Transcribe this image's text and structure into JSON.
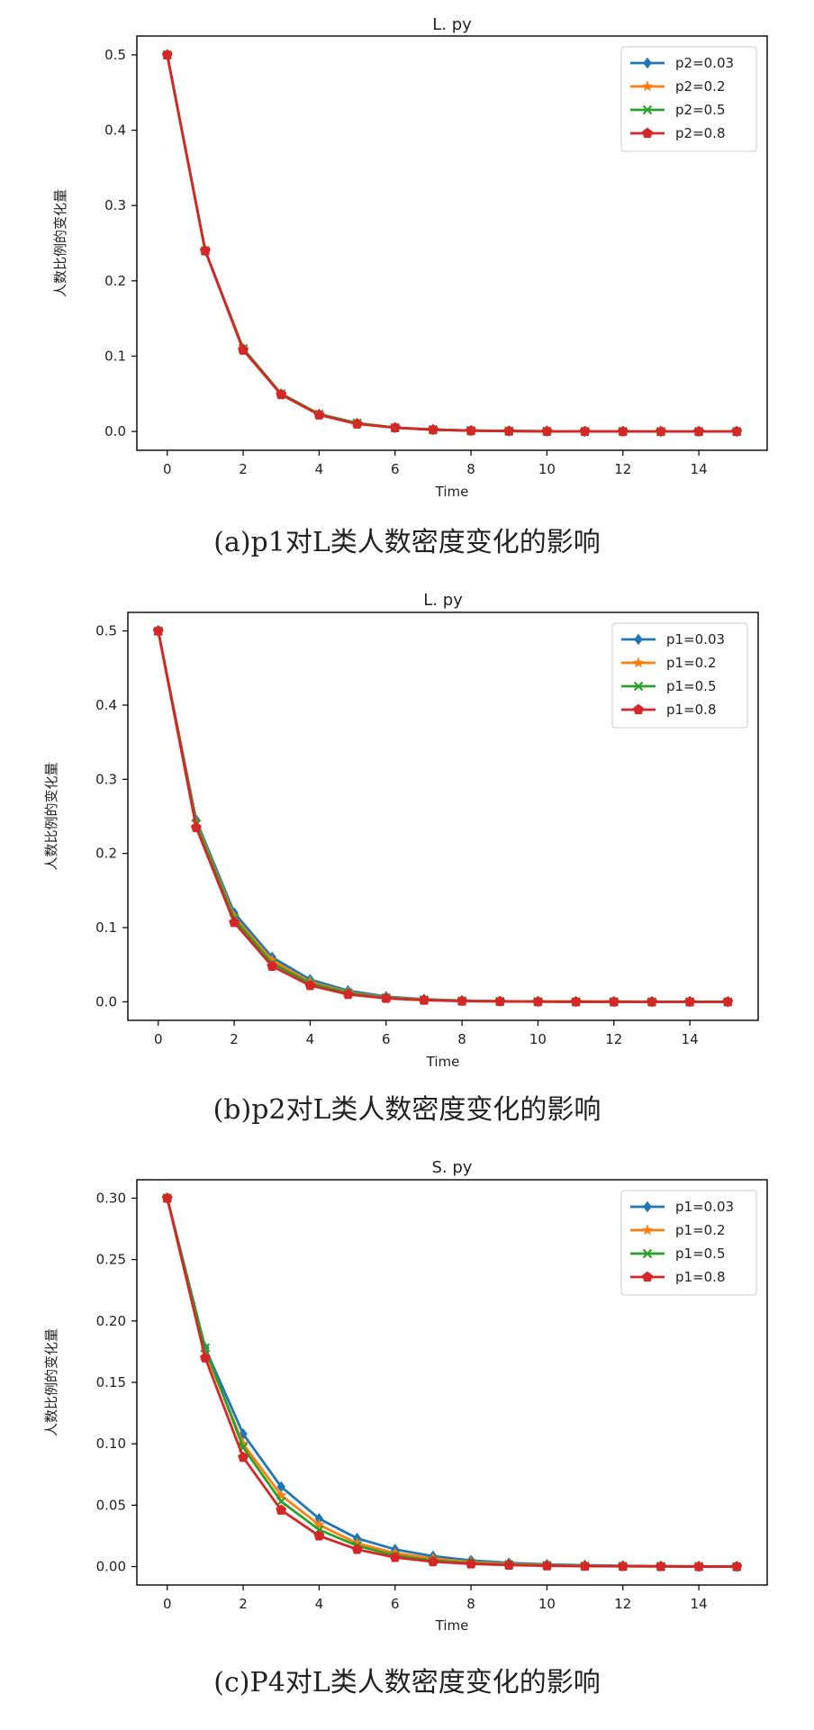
{
  "colors": {
    "blue": "#1f77b4",
    "orange": "#ff7f0e",
    "green": "#2ca02c",
    "red": "#d62728"
  },
  "chart_data": [
    {
      "type": "line",
      "title": "L. py",
      "xlabel": "Time",
      "ylabel": "人数比例的变化量",
      "caption": "(a)p1对L类人数密度变化的影响",
      "x": [
        0,
        1,
        2,
        3,
        4,
        5,
        6,
        7,
        8,
        9,
        10,
        11,
        12,
        13,
        14,
        15
      ],
      "xticks": [
        0,
        2,
        4,
        6,
        8,
        10,
        12,
        14
      ],
      "xlim": [
        -0.8,
        15.8
      ],
      "yticks": [
        0.0,
        0.1,
        0.2,
        0.3,
        0.4,
        0.5
      ],
      "ytick_labels": [
        "0.0",
        "0.1",
        "0.2",
        "0.3",
        "0.4",
        "0.5"
      ],
      "ylim": [
        -0.025,
        0.525
      ],
      "legend": "top-right",
      "series": [
        {
          "name": "p2=0.03",
          "color": "blue",
          "marker": "diamond",
          "values": [
            0.5,
            0.24,
            0.11,
            0.05,
            0.023,
            0.011,
            0.005,
            0.0024,
            0.0012,
            0.0006,
            0.0003,
            0.0001,
            0.0001,
            0.0,
            0.0,
            0.0
          ]
        },
        {
          "name": "p2=0.2",
          "color": "orange",
          "marker": "star",
          "values": [
            0.5,
            0.24,
            0.11,
            0.05,
            0.023,
            0.011,
            0.005,
            0.0024,
            0.0012,
            0.0006,
            0.0003,
            0.0001,
            0.0001,
            0.0,
            0.0,
            0.0
          ]
        },
        {
          "name": "p2=0.5",
          "color": "green",
          "marker": "x",
          "values": [
            0.5,
            0.24,
            0.11,
            0.05,
            0.023,
            0.011,
            0.005,
            0.0024,
            0.0012,
            0.0006,
            0.0003,
            0.0001,
            0.0001,
            0.0,
            0.0,
            0.0
          ]
        },
        {
          "name": "p2=0.8",
          "color": "red",
          "marker": "pentagon",
          "values": [
            0.5,
            0.24,
            0.108,
            0.049,
            0.022,
            0.01,
            0.005,
            0.0023,
            0.001,
            0.0005,
            0.0002,
            0.0001,
            0.0,
            0.0,
            0.0,
            0.0
          ]
        }
      ]
    },
    {
      "type": "line",
      "title": "L. py",
      "xlabel": "Time",
      "ylabel": "人数比例的变化量",
      "caption": "(b)p2对L类人数密度变化的影响",
      "x": [
        0,
        1,
        2,
        3,
        4,
        5,
        6,
        7,
        8,
        9,
        10,
        11,
        12,
        13,
        14,
        15
      ],
      "xticks": [
        0,
        2,
        4,
        6,
        8,
        10,
        12,
        14
      ],
      "xlim": [
        -0.8,
        15.8
      ],
      "yticks": [
        0.0,
        0.1,
        0.2,
        0.3,
        0.4,
        0.5
      ],
      "ytick_labels": [
        "0.0",
        "0.1",
        "0.2",
        "0.3",
        "0.4",
        "0.5"
      ],
      "ylim": [
        -0.025,
        0.525
      ],
      "legend": "top-right",
      "series": [
        {
          "name": "p1=0.03",
          "color": "blue",
          "marker": "diamond",
          "values": [
            0.5,
            0.245,
            0.12,
            0.06,
            0.03,
            0.015,
            0.007,
            0.0035,
            0.0017,
            0.0008,
            0.0004,
            0.0002,
            0.0001,
            0.0,
            0.0,
            0.0
          ]
        },
        {
          "name": "p1=0.2",
          "color": "orange",
          "marker": "star",
          "values": [
            0.5,
            0.242,
            0.115,
            0.056,
            0.027,
            0.013,
            0.006,
            0.003,
            0.0014,
            0.0007,
            0.0003,
            0.0002,
            0.0001,
            0.0,
            0.0,
            0.0
          ]
        },
        {
          "name": "p1=0.5",
          "color": "green",
          "marker": "x",
          "values": [
            0.5,
            0.24,
            0.112,
            0.052,
            0.025,
            0.012,
            0.0055,
            0.0026,
            0.0012,
            0.0006,
            0.0003,
            0.0001,
            0.0001,
            0.0,
            0.0,
            0.0
          ]
        },
        {
          "name": "p1=0.8",
          "color": "red",
          "marker": "pentagon",
          "values": [
            0.5,
            0.235,
            0.107,
            0.048,
            0.022,
            0.01,
            0.0047,
            0.0022,
            0.001,
            0.0005,
            0.0002,
            0.0001,
            0.0,
            0.0,
            0.0,
            0.0
          ]
        }
      ]
    },
    {
      "type": "line",
      "title": "S. py",
      "xlabel": "Time",
      "ylabel": "人数比例的变化量",
      "caption": "(c)P4对L类人数密度变化的影响",
      "x": [
        0,
        1,
        2,
        3,
        4,
        5,
        6,
        7,
        8,
        9,
        10,
        11,
        12,
        13,
        14,
        15
      ],
      "xticks": [
        0,
        2,
        4,
        6,
        8,
        10,
        12,
        14
      ],
      "xlim": [
        -0.8,
        15.8
      ],
      "yticks": [
        0.0,
        0.05,
        0.1,
        0.15,
        0.2,
        0.25,
        0.3
      ],
      "ytick_labels": [
        "0.00",
        "0.05",
        "0.10",
        "0.15",
        "0.20",
        "0.25",
        "0.30"
      ],
      "ylim": [
        -0.015,
        0.315
      ],
      "legend": "top-right",
      "series": [
        {
          "name": "p1=0.03",
          "color": "blue",
          "marker": "diamond",
          "values": [
            0.3,
            0.178,
            0.108,
            0.065,
            0.039,
            0.023,
            0.014,
            0.0085,
            0.005,
            0.003,
            0.0018,
            0.0011,
            0.0007,
            0.0004,
            0.0002,
            0.0001
          ]
        },
        {
          "name": "p1=0.2",
          "color": "orange",
          "marker": "star",
          "values": [
            0.3,
            0.175,
            0.1,
            0.058,
            0.034,
            0.019,
            0.011,
            0.0065,
            0.0037,
            0.0021,
            0.0012,
            0.0007,
            0.0004,
            0.0002,
            0.0001,
            0.0001
          ]
        },
        {
          "name": "p1=0.5",
          "color": "green",
          "marker": "x",
          "values": [
            0.3,
            0.178,
            0.097,
            0.053,
            0.03,
            0.017,
            0.009,
            0.005,
            0.0028,
            0.0016,
            0.0009,
            0.0005,
            0.0003,
            0.0002,
            0.0001,
            0.0
          ]
        },
        {
          "name": "p1=0.8",
          "color": "red",
          "marker": "pentagon",
          "values": [
            0.3,
            0.17,
            0.089,
            0.046,
            0.025,
            0.014,
            0.0075,
            0.004,
            0.0022,
            0.0012,
            0.0006,
            0.0003,
            0.0002,
            0.0001,
            0.0,
            0.0
          ]
        }
      ]
    }
  ]
}
